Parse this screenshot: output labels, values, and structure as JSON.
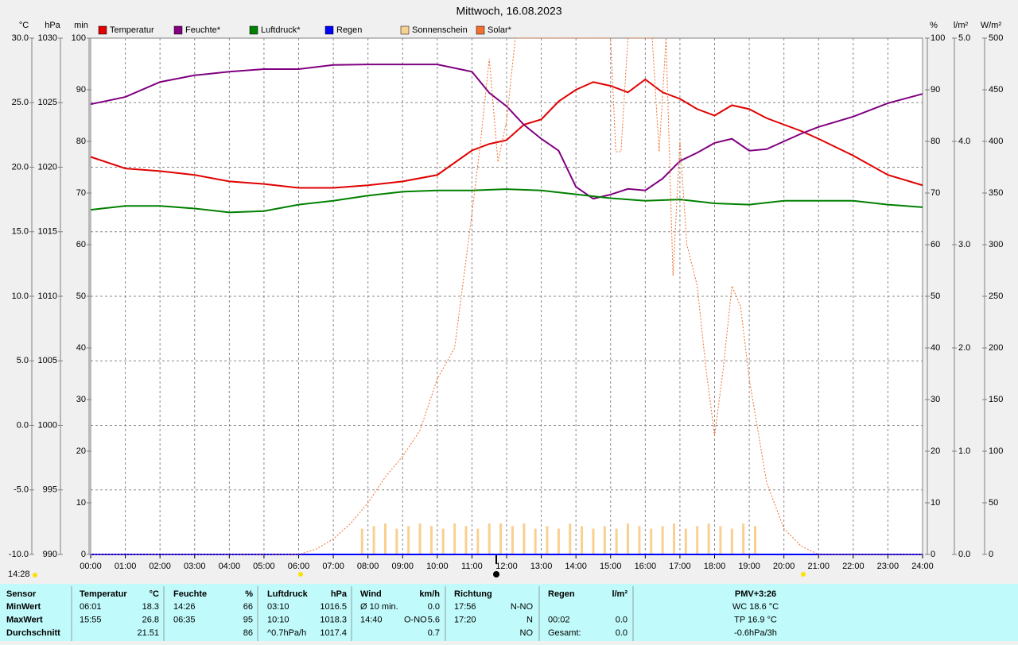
{
  "chart_data": {
    "type": "line",
    "title": "Mittwoch, 16.08.2023",
    "grid": true,
    "xlim": [
      0,
      24
    ],
    "xticks": [
      {
        "value": 0,
        "label": "00:00"
      },
      {
        "value": 1,
        "label": "01:00"
      },
      {
        "value": 2,
        "label": "02:00"
      },
      {
        "value": 3,
        "label": "03:00"
      },
      {
        "value": 4,
        "label": "04:00"
      },
      {
        "value": 5,
        "label": "05:00"
      },
      {
        "value": 6,
        "label": "06:00"
      },
      {
        "value": 7,
        "label": "07:00"
      },
      {
        "value": 8,
        "label": "08:00"
      },
      {
        "value": 9,
        "label": "09:00"
      },
      {
        "value": 10,
        "label": "10:00"
      },
      {
        "value": 11,
        "label": "11:00"
      },
      {
        "value": 12,
        "label": "12:00"
      },
      {
        "value": 13,
        "label": "13:00"
      },
      {
        "value": 14,
        "label": "14:00"
      },
      {
        "value": 15,
        "label": "15:00"
      },
      {
        "value": 16,
        "label": "16:00"
      },
      {
        "value": 17,
        "label": "17:00"
      },
      {
        "value": 18,
        "label": "18:00"
      },
      {
        "value": 19,
        "label": "19:00"
      },
      {
        "value": 20,
        "label": "20:00"
      },
      {
        "value": 21,
        "label": "21:00"
      },
      {
        "value": 22,
        "label": "22:00"
      },
      {
        "value": 23,
        "label": "23:00"
      },
      {
        "value": 24,
        "label": "24:00"
      }
    ],
    "axes": [
      {
        "unit": "°C",
        "color": "#e00000",
        "lim": [
          -10,
          30
        ],
        "ticks": [
          {
            "value": -10,
            "label": "-10.0"
          },
          {
            "value": -5,
            "label": "-5.0"
          },
          {
            "value": 0,
            "label": "0.0"
          },
          {
            "value": 5,
            "label": "5.0"
          },
          {
            "value": 10,
            "label": "10.0"
          },
          {
            "value": 15,
            "label": "15.0"
          },
          {
            "value": 20,
            "label": "20.0"
          },
          {
            "value": 25,
            "label": "25.0"
          },
          {
            "value": 30,
            "label": "30.0"
          }
        ]
      },
      {
        "unit": "hPa",
        "color": "#008000",
        "lim": [
          990,
          1030
        ],
        "ticks": [
          990,
          995,
          1000,
          1005,
          1010,
          1015,
          1020,
          1025,
          1030
        ]
      },
      {
        "unit": "min",
        "color": "#f8c888",
        "lim": [
          0,
          100
        ],
        "ticks": [
          0,
          10,
          20,
          30,
          40,
          50,
          60,
          70,
          80,
          90,
          100
        ]
      },
      {
        "unit": "%",
        "color": "#800080",
        "lim": [
          0,
          100
        ],
        "ticks": [
          0,
          10,
          20,
          30,
          40,
          50,
          60,
          70,
          80,
          90,
          100
        ]
      },
      {
        "unit": "l/m²",
        "color": "#000080",
        "lim": [
          0,
          5
        ],
        "ticks": [
          {
            "value": 0,
            "label": "0.0"
          },
          {
            "value": 1,
            "label": "1.0"
          },
          {
            "value": 2,
            "label": "2.0"
          },
          {
            "value": 3,
            "label": "3.0"
          },
          {
            "value": 4,
            "label": "4.0"
          },
          {
            "value": 5,
            "label": "5.0"
          }
        ]
      },
      {
        "unit": "W/m²",
        "color": "#f07030",
        "lim": [
          0,
          500
        ],
        "ticks": [
          0,
          50,
          100,
          150,
          200,
          250,
          300,
          350,
          400,
          450,
          500
        ]
      }
    ],
    "series": [
      {
        "name": "Temperatur",
        "color": "#e00000",
        "type": "line",
        "axis": 0,
        "x": [
          0,
          1,
          2,
          3,
          4,
          5,
          6,
          7,
          8,
          9,
          10,
          11,
          11.5,
          12,
          12.5,
          13,
          13.5,
          14,
          14.5,
          15,
          15.5,
          16,
          16.5,
          17,
          17.5,
          18,
          18.5,
          19,
          19.5,
          20,
          20.5,
          21,
          22,
          23,
          24
        ],
        "values": [
          20.8,
          19.9,
          19.7,
          19.4,
          18.9,
          18.7,
          18.4,
          18.4,
          18.6,
          18.9,
          19.4,
          21.3,
          21.8,
          22.1,
          23.3,
          23.7,
          25.1,
          26.0,
          26.6,
          26.3,
          25.8,
          26.8,
          25.8,
          25.3,
          24.5,
          24.0,
          24.8,
          24.5,
          23.8,
          23.3,
          22.8,
          22.2,
          20.9,
          19.4,
          18.6
        ]
      },
      {
        "name": "Feuchte*",
        "color": "#800080",
        "type": "line",
        "axis": 3,
        "x": [
          0,
          1,
          2,
          3,
          4,
          5,
          6,
          7,
          8,
          9,
          10,
          11,
          11.5,
          12,
          12.5,
          13,
          13.5,
          14,
          14.5,
          15,
          15.5,
          16,
          16.5,
          17,
          17.5,
          18,
          18.5,
          19,
          19.5,
          20,
          20.5,
          21,
          22,
          23,
          24
        ],
        "values": [
          87.2,
          88.6,
          91.5,
          92.8,
          93.5,
          94,
          94,
          94.8,
          94.9,
          94.9,
          94.9,
          93.5,
          89.4,
          86.8,
          83.2,
          80.5,
          78.2,
          71.2,
          68.9,
          69.7,
          70.8,
          70.5,
          72.8,
          76.2,
          77.8,
          79.7,
          80.5,
          78.2,
          78.5,
          80,
          81.5,
          82.8,
          84.8,
          87.4,
          89.2
        ]
      },
      {
        "name": "Luftdruck*",
        "color": "#008000",
        "type": "line",
        "axis": 1,
        "x": [
          0,
          1,
          2,
          3,
          4,
          5,
          6,
          7,
          8,
          9,
          10,
          11,
          12,
          13,
          14,
          15,
          16,
          17,
          18,
          19,
          20,
          21,
          22,
          23,
          24
        ],
        "values": [
          1016.7,
          1017,
          1017,
          1016.8,
          1016.5,
          1016.6,
          1017.1,
          1017.4,
          1017.8,
          1018.1,
          1018.2,
          1018.2,
          1018.3,
          1018.2,
          1017.9,
          1017.6,
          1017.4,
          1017.5,
          1017.2,
          1017.1,
          1017.4,
          1017.4,
          1017.4,
          1017.1,
          1016.9
        ]
      },
      {
        "name": "Regen",
        "color": "#0000ff",
        "type": "line",
        "axis": 4,
        "x": [
          0,
          24
        ],
        "values": [
          0,
          0
        ]
      },
      {
        "name": "Sonnenschein",
        "color": "#f8d090",
        "type": "bar",
        "axis": 2,
        "x": [
          7.83,
          8.17,
          8.5,
          8.83,
          9.17,
          9.5,
          9.83,
          10.17,
          10.5,
          10.83,
          11.17,
          11.5,
          11.83,
          12.17,
          12.5,
          12.83,
          13.17,
          13.5,
          13.83,
          14.17,
          14.5,
          14.83,
          15.17,
          15.5,
          15.83,
          16.17,
          16.5,
          16.83,
          17.17,
          17.5,
          17.83,
          18.17,
          18.5,
          18.83,
          19.17
        ],
        "values": [
          5,
          5.5,
          6,
          5,
          5.5,
          6,
          5.5,
          5,
          6,
          5.5,
          5,
          6,
          6,
          5.5,
          6,
          5,
          5.5,
          5,
          6,
          5.5,
          5,
          5.5,
          5,
          6,
          5.5,
          5,
          5.5,
          6,
          5,
          5.5,
          6,
          5.5,
          5,
          6,
          5.5
        ]
      },
      {
        "name": "Solar*",
        "color": "#f07030",
        "type": "line",
        "dashed": true,
        "axis": 5,
        "x": [
          0,
          6,
          6.5,
          7,
          7.5,
          8,
          8.5,
          9,
          9.5,
          10,
          10.5,
          11,
          11.25,
          11.5,
          11.75,
          12,
          12.25,
          12.5,
          15,
          15.15,
          15.3,
          15.5,
          16,
          16.2,
          16.4,
          16.6,
          16.8,
          17,
          17.2,
          17.5,
          17.75,
          18,
          18.25,
          18.5,
          18.75,
          19,
          19.5,
          20,
          20.5,
          21,
          24
        ],
        "values": [
          0,
          0,
          5,
          15,
          30,
          50,
          75,
          95,
          120,
          170,
          200,
          330,
          400,
          480,
          380,
          420,
          500,
          500,
          500,
          390,
          390,
          500,
          500,
          500,
          390,
          500,
          270,
          400,
          300,
          260,
          180,
          115,
          180,
          260,
          240,
          170,
          70,
          25,
          8,
          0,
          0
        ]
      }
    ]
  },
  "current_time": "14:28",
  "table": {
    "header": [
      {
        "l": "Sensor"
      },
      {
        "l": "Temperatur",
        "r": "°C"
      },
      {
        "l": "Feuchte",
        "r": "%"
      },
      {
        "l": "Luftdruck",
        "r": "hPa"
      },
      {
        "l": "Wind",
        "r": "km/h"
      },
      {
        "l": "Richtung"
      },
      {
        "l": "Regen",
        "r": "l/m²"
      },
      {
        "c": "PMV+3:26"
      }
    ],
    "rows": [
      [
        {
          "l": "MinWert"
        },
        {
          "l": "06:01",
          "r": "18.3"
        },
        {
          "l": "14:26",
          "r": "66"
        },
        {
          "l": "03:10",
          "r": "1016.5"
        },
        {
          "l": "Ø 10 min.",
          "r": "0.0"
        },
        {
          "l": "17:56",
          "r": "N-NO"
        },
        null,
        {
          "c": "WC 18.6 °C"
        }
      ],
      [
        {
          "l": "MaxWert"
        },
        {
          "l": "15:55",
          "r": "26.8"
        },
        {
          "l": "06:35",
          "r": "95"
        },
        {
          "l": "10:10",
          "r": "1018.3"
        },
        {
          "l": "14:40",
          "m": "O-NO",
          "r": "5.6"
        },
        {
          "l": "17:20",
          "r": "N"
        },
        {
          "l": "00:02",
          "r": "0.0"
        },
        {
          "c": "TP 16.9 °C"
        }
      ],
      [
        {
          "l": "Durchschnitt"
        },
        {
          "r": "21.51"
        },
        {
          "r": "86"
        },
        {
          "l": "^0.7hPa/h",
          "r": "1017.4"
        },
        {
          "r": "0.7"
        },
        {
          "r": "NO"
        },
        {
          "l": "Gesamt:",
          "r": "0.0"
        },
        {
          "c": "-0.6hPa/3h"
        }
      ]
    ]
  }
}
